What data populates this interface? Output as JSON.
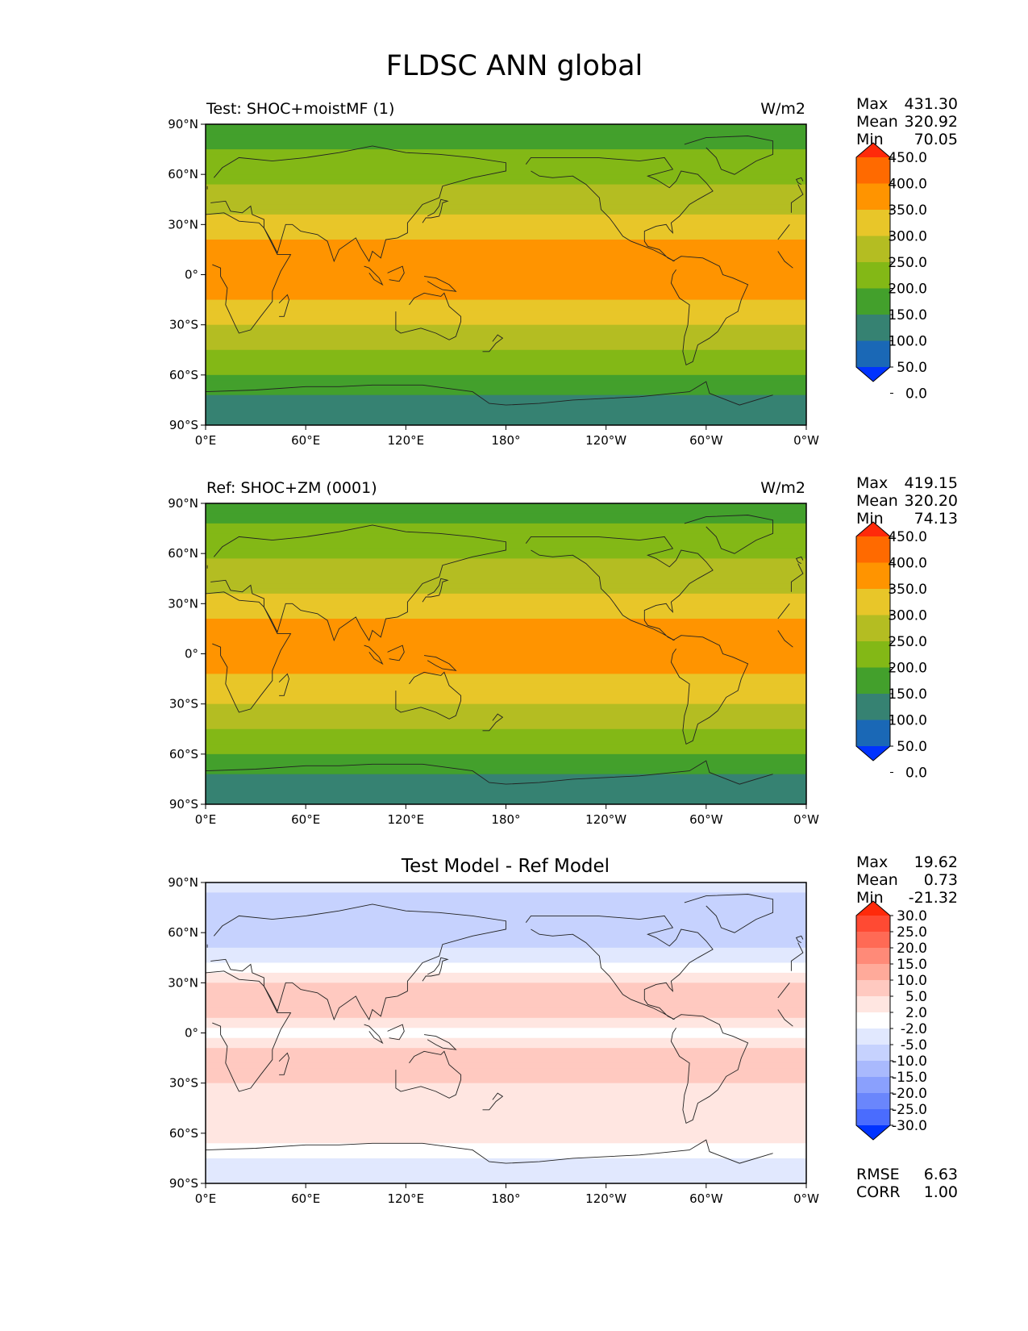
{
  "figure": {
    "title": "FLDSC ANN global"
  },
  "axes": {
    "lat_ticks": [
      "90°N",
      "60°N",
      "30°N",
      "0°",
      "30°S",
      "60°S",
      "90°S"
    ],
    "lon_ticks": [
      "0°E",
      "60°E",
      "120°E",
      "180°",
      "120°W",
      "60°W",
      "0°W"
    ]
  },
  "chart_data": [
    {
      "type": "heatmap",
      "projection": "plate-carree",
      "title": "Test: SHOC+moistMF (1)",
      "units": "W/m2",
      "stats": {
        "max_label": "Max",
        "max": "431.30",
        "mean_label": "Mean",
        "mean": "320.92",
        "min_label": "Min",
        "min": "70.05"
      },
      "colorbar": {
        "levels": [
          "450.0",
          "400.0",
          "350.0",
          "300.0",
          "250.0",
          "200.0",
          "150.0",
          "100.0",
          "50.0",
          "0.0"
        ],
        "colors": [
          "#ff2a0a",
          "#ff6a00",
          "#ff9400",
          "#e8c629",
          "#b4bd22",
          "#83b816",
          "#43a02c",
          "#368272",
          "#1a68b6",
          "#0033ff"
        ]
      },
      "zonal_profile": {
        "lat": [
          90,
          75,
          60,
          45,
          30,
          15,
          0,
          -15,
          -30,
          -45,
          -60,
          -75,
          -90
        ],
        "value": [
          175,
          200,
          240,
          270,
          320,
          370,
          395,
          350,
          300,
          250,
          200,
          130,
          100
        ]
      }
    },
    {
      "type": "heatmap",
      "projection": "plate-carree",
      "title": "Ref: SHOC+ZM (0001)",
      "units": "W/m2",
      "stats": {
        "max_label": "Max",
        "max": "419.15",
        "mean_label": "Mean",
        "mean": "320.20",
        "min_label": "Min",
        "min": "74.13"
      },
      "colorbar": {
        "levels": [
          "450.0",
          "400.0",
          "350.0",
          "300.0",
          "250.0",
          "200.0",
          "150.0",
          "100.0",
          "50.0",
          "0.0"
        ],
        "colors": [
          "#ff2a0a",
          "#ff6a00",
          "#ff9400",
          "#e8c629",
          "#b4bd22",
          "#83b816",
          "#43a02c",
          "#368272",
          "#1a68b6",
          "#0033ff"
        ]
      },
      "zonal_profile": {
        "lat": [
          90,
          75,
          60,
          45,
          30,
          15,
          0,
          -15,
          -30,
          -45,
          -60,
          -75,
          -90
        ],
        "value": [
          180,
          205,
          245,
          275,
          320,
          365,
          390,
          345,
          300,
          250,
          200,
          135,
          100
        ]
      }
    },
    {
      "type": "heatmap",
      "projection": "plate-carree",
      "title": "Test Model - Ref Model",
      "units": "",
      "stats": {
        "max_label": "Max",
        "max": "19.62",
        "mean_label": "Mean",
        "mean": "0.73",
        "min_label": "Min",
        "min": "-21.32"
      },
      "metrics": {
        "rmse_label": "RMSE",
        "rmse": "6.63",
        "corr_label": "CORR",
        "corr": "1.00"
      },
      "colorbar": {
        "levels": [
          "30.0",
          "25.0",
          "20.0",
          "15.0",
          "10.0",
          "5.0",
          "2.0",
          "-2.0",
          "-5.0",
          "-10.0",
          "-15.0",
          "-20.0",
          "-25.0",
          "-30.0"
        ],
        "colors": [
          "#ff2a0a",
          "#ff4a33",
          "#ff6a55",
          "#ff8a78",
          "#ffaa9a",
          "#ffc9c0",
          "#ffe6e1",
          "#ffffff",
          "#e1e8fe",
          "#c6d2fe",
          "#a9b9fd",
          "#8aa0fd",
          "#6a86fc",
          "#4a6cfe",
          "#0033ff"
        ]
      },
      "zonal_profile": {
        "lat": [
          90,
          75,
          60,
          45,
          30,
          15,
          0,
          -15,
          -30,
          -45,
          -60,
          -75,
          -90
        ],
        "value": [
          -4,
          -7,
          -8,
          -3,
          5,
          7,
          1,
          8,
          5,
          2,
          5,
          -2,
          -4
        ]
      }
    }
  ]
}
